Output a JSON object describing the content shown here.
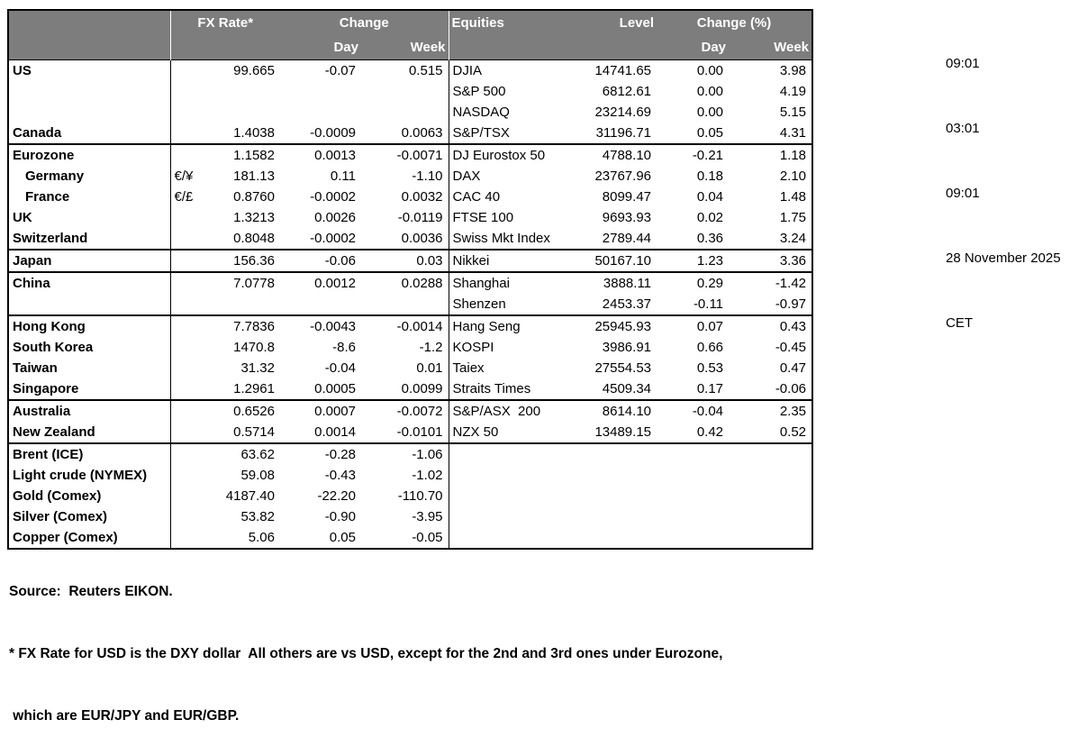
{
  "header": {
    "fx_rate": "FX Rate*",
    "change": "Change",
    "day": "Day",
    "week": "Week",
    "equities": "Equities",
    "level": "Level",
    "change_pct": "Change (%)",
    "day2": "Day",
    "week2": "Week"
  },
  "timestamps": {
    "lines": [
      "09:01",
      "03:01",
      "09:01",
      "28 November 2025",
      "CET"
    ]
  },
  "footer": {
    "source": "Source:  Reuters EIKON.",
    "note1": "* FX Rate for USD is the DXY dollar  All others are vs USD, except for the 2nd and 3rd ones under Eurozone,",
    "note2": " which are EUR/JPY and EUR/GBP."
  },
  "colors": {
    "header_bg": "#7d7d7d",
    "header_text": "#ffffff",
    "border": "#000000"
  },
  "table": {
    "rows": [
      {
        "name": "US",
        "pair": "",
        "fx": "99.665",
        "day": "-0.07",
        "week": "0.515",
        "eq": "DJIA",
        "level": "14741.65",
        "eday": "0.00",
        "eweek": "3.98",
        "sep": false,
        "indent": false
      },
      {
        "name": "",
        "pair": "",
        "fx": "",
        "day": "",
        "week": "",
        "eq": "S&P 500",
        "level": "6812.61",
        "eday": "0.00",
        "eweek": "4.19",
        "sep": false,
        "indent": false
      },
      {
        "name": "",
        "pair": "",
        "fx": "",
        "day": "",
        "week": "",
        "eq": "NASDAQ",
        "level": "23214.69",
        "eday": "0.00",
        "eweek": "5.15",
        "sep": false,
        "indent": false
      },
      {
        "name": "Canada",
        "pair": "",
        "fx": "1.4038",
        "day": "-0.0009",
        "week": "0.0063",
        "eq": "S&P/TSX",
        "level": "31196.71",
        "eday": "0.05",
        "eweek": "4.31",
        "sep": false,
        "indent": false
      },
      {
        "name": "Eurozone",
        "pair": "",
        "fx": "1.1582",
        "day": "0.0013",
        "week": "-0.0071",
        "eq": "DJ Eurostox 50",
        "level": "4788.10",
        "eday": "-0.21",
        "eweek": "1.18",
        "sep": true,
        "indent": false
      },
      {
        "name": "Germany",
        "pair": "€/¥",
        "fx": "181.13",
        "day": "0.11",
        "week": "-1.10",
        "eq": "DAX",
        "level": "23767.96",
        "eday": "0.18",
        "eweek": "2.10",
        "sep": false,
        "indent": true
      },
      {
        "name": "France",
        "pair": "€/£",
        "fx": "0.8760",
        "day": "-0.0002",
        "week": "0.0032",
        "eq": "CAC 40",
        "level": "8099.47",
        "eday": "0.04",
        "eweek": "1.48",
        "sep": false,
        "indent": true
      },
      {
        "name": "UK",
        "pair": "",
        "fx": "1.3213",
        "day": "0.0026",
        "week": "-0.0119",
        "eq": "FTSE 100",
        "level": "9693.93",
        "eday": "0.02",
        "eweek": "1.75",
        "sep": false,
        "indent": false
      },
      {
        "name": "Switzerland",
        "pair": "",
        "fx": "0.8048",
        "day": "-0.0002",
        "week": "0.0036",
        "eq": "Swiss Mkt Index",
        "level": "2789.44",
        "eday": "0.36",
        "eweek": "3.24",
        "sep": false,
        "indent": false
      },
      {
        "name": "Japan",
        "pair": "",
        "fx": "156.36",
        "day": "-0.06",
        "week": "0.03",
        "eq": "Nikkei",
        "level": "50167.10",
        "eday": "1.23",
        "eweek": "3.36",
        "sep": true,
        "indent": false
      },
      {
        "name": "China",
        "pair": "",
        "fx": "7.0778",
        "day": "0.0012",
        "week": "0.0288",
        "eq": "Shanghai",
        "level": "3888.11",
        "eday": "0.29",
        "eweek": "-1.42",
        "sep": true,
        "indent": false
      },
      {
        "name": "",
        "pair": "",
        "fx": "",
        "day": "",
        "week": "",
        "eq": "Shenzen",
        "level": "2453.37",
        "eday": "-0.11",
        "eweek": "-0.97",
        "sep": false,
        "indent": false
      },
      {
        "name": "Hong Kong",
        "pair": "",
        "fx": "7.7836",
        "day": "-0.0043",
        "week": "-0.0014",
        "eq": "Hang Seng",
        "level": "25945.93",
        "eday": "0.07",
        "eweek": "0.43",
        "sep": true,
        "indent": false
      },
      {
        "name": "South Korea",
        "pair": "",
        "fx": "1470.8",
        "day": "-8.6",
        "week": "-1.2",
        "eq": "KOSPI",
        "level": "3986.91",
        "eday": "0.66",
        "eweek": "-0.45",
        "sep": false,
        "indent": false
      },
      {
        "name": "Taiwan",
        "pair": "",
        "fx": "31.32",
        "day": "-0.04",
        "week": "0.01",
        "eq": "Taiex",
        "level": "27554.53",
        "eday": "0.53",
        "eweek": "0.47",
        "sep": false,
        "indent": false
      },
      {
        "name": "Singapore",
        "pair": "",
        "fx": "1.2961",
        "day": "0.0005",
        "week": "0.0099",
        "eq": "Straits Times",
        "level": "4509.34",
        "eday": "0.17",
        "eweek": "-0.06",
        "sep": false,
        "indent": false
      },
      {
        "name": "Australia",
        "pair": "",
        "fx": "0.6526",
        "day": "0.0007",
        "week": "-0.0072",
        "eq": "S&P/ASX  200",
        "level": "8614.10",
        "eday": "-0.04",
        "eweek": "2.35",
        "sep": true,
        "indent": false
      },
      {
        "name": "New Zealand",
        "pair": "",
        "fx": "0.5714",
        "day": "0.0014",
        "week": "-0.0101",
        "eq": "NZX 50",
        "level": "13489.15",
        "eday": "0.42",
        "eweek": "0.52",
        "sep": false,
        "indent": false
      },
      {
        "name": "Brent (ICE)",
        "pair": "",
        "fx": "63.62",
        "day": "-0.28",
        "week": "-1.06",
        "eq": "",
        "level": "",
        "eday": "",
        "eweek": "",
        "sep": true,
        "indent": false
      },
      {
        "name": "Light crude (NYMEX)",
        "pair": "",
        "fx": "59.08",
        "day": "-0.43",
        "week": "-1.02",
        "eq": "",
        "level": "",
        "eday": "",
        "eweek": "",
        "sep": false,
        "indent": false
      },
      {
        "name": "Gold (Comex)",
        "pair": "",
        "fx": "4187.40",
        "day": "-22.20",
        "week": "-110.70",
        "eq": "",
        "level": "",
        "eday": "",
        "eweek": "",
        "sep": false,
        "indent": false
      },
      {
        "name": "Silver (Comex)",
        "pair": "",
        "fx": "53.82",
        "day": "-0.90",
        "week": "-3.95",
        "eq": "",
        "level": "",
        "eday": "",
        "eweek": "",
        "sep": false,
        "indent": false
      },
      {
        "name": "Copper (Comex)",
        "pair": "",
        "fx": "5.06",
        "day": "0.05",
        "week": "-0.05",
        "eq": "",
        "level": "",
        "eday": "",
        "eweek": "",
        "sep": false,
        "indent": false
      }
    ]
  }
}
